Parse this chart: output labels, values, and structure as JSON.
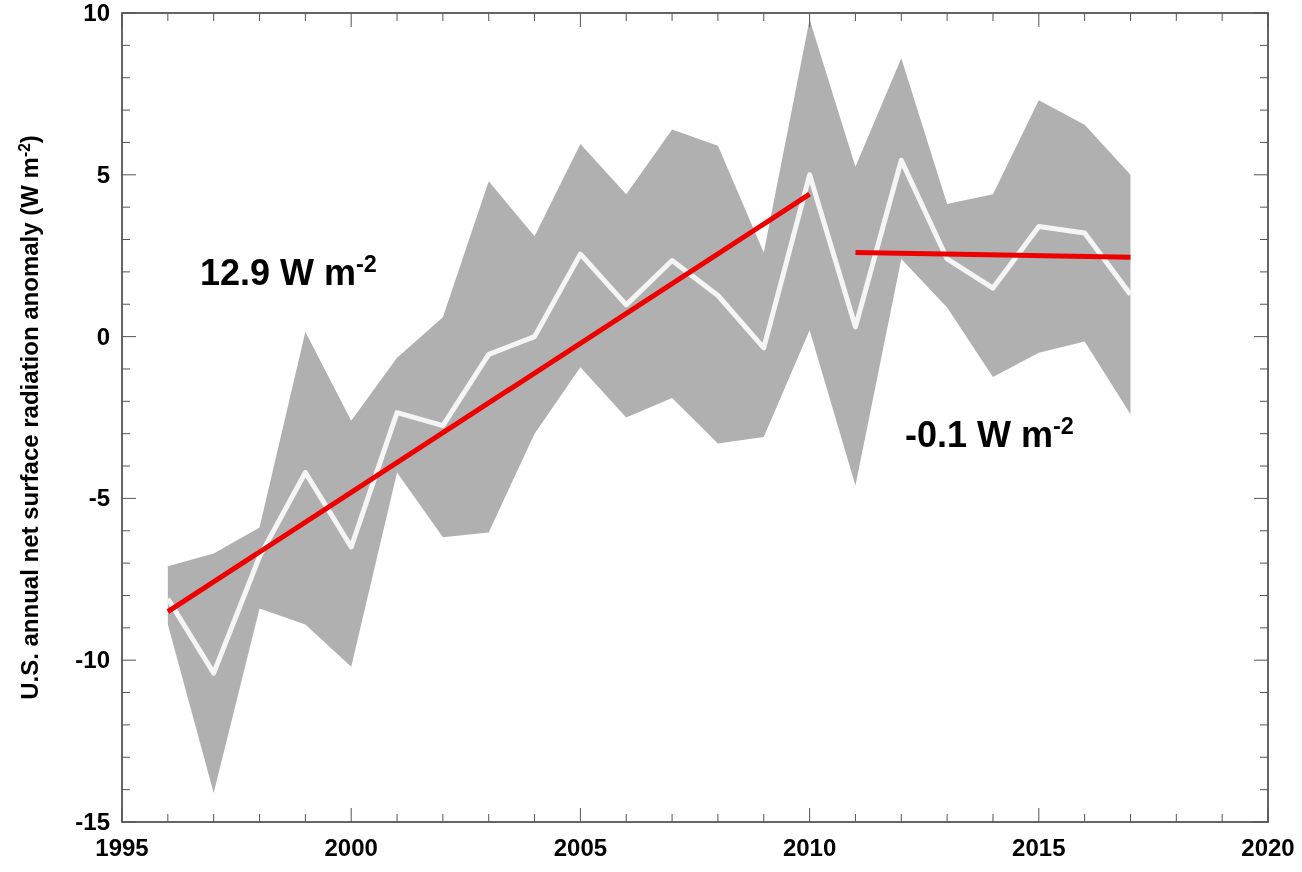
{
  "chart_data": {
    "type": "line",
    "ylabel": "U.S. annual net surface radiation anomaly (W m$^{-2}$)",
    "annotations": [
      "12.9 W m$^{-2}$",
      "-0.1 W m$^{-2}$"
    ],
    "x": [
      1996,
      1997,
      1998,
      1999,
      2000,
      2001,
      2002,
      2003,
      2004,
      2005,
      2006,
      2007,
      2008,
      2009,
      2010,
      2011,
      2012,
      2013,
      2014,
      2015,
      2016,
      2017
    ],
    "series": [
      {
        "color": "#f5f5f5",
        "values": [
          -8.1,
          -10.4,
          -6.8,
          -4.2,
          -6.5,
          -2.35,
          -2.75,
          -0.55,
          0.0,
          2.55,
          0.98,
          2.35,
          1.27,
          -0.35,
          5.0,
          0.3,
          5.45,
          2.4,
          1.5,
          3.4,
          3.2,
          1.3
        ],
        "upper": [
          -7.1,
          -6.7,
          -5.9,
          0.15,
          -2.6,
          -0.65,
          0.6,
          4.8,
          3.1,
          5.95,
          4.4,
          6.4,
          5.9,
          2.6,
          9.8,
          5.25,
          8.6,
          4.1,
          4.4,
          7.3,
          6.55,
          5.0
        ],
        "lower": [
          -8.9,
          -14.1,
          -8.4,
          -8.9,
          -10.2,
          -4.2,
          -6.2,
          -6.05,
          -3.0,
          -0.95,
          -2.5,
          -1.9,
          -3.3,
          -3.1,
          0.2,
          -4.6,
          2.4,
          0.9,
          -1.25,
          -0.5,
          -0.15,
          -2.4
        ]
      },
      {
        "color": "#ee0000",
        "x": [
          1996,
          2010
        ],
        "values": [
          -8.5,
          4.4
        ]
      },
      {
        "color": "#ee0000",
        "x": [
          2011,
          2017
        ],
        "values": [
          2.6,
          2.45
        ]
      }
    ],
    "xlim": [
      1995,
      2020
    ],
    "xticks": [
      1995,
      {
        "value": 1996,
        "label": null
      },
      {
        "value": 1997,
        "label": null
      },
      {
        "value": 1998,
        "label": null
      },
      {
        "value": 1999,
        "label": null
      },
      2000,
      {
        "value": 2001,
        "label": null
      },
      {
        "value": 2002,
        "label": null
      },
      {
        "value": 2003,
        "label": null
      },
      {
        "value": 2004,
        "label": null
      },
      2005,
      {
        "value": 2006,
        "label": null
      },
      {
        "value": 2007,
        "label": null
      },
      {
        "value": 2008,
        "label": null
      },
      {
        "value": 2009,
        "label": null
      },
      2010,
      {
        "value": 2011,
        "label": null
      },
      {
        "value": 2012,
        "label": null
      },
      {
        "value": 2013,
        "label": null
      },
      {
        "value": 2014,
        "label": null
      },
      2015,
      {
        "value": 2016,
        "label": null
      },
      {
        "value": 2017,
        "label": null
      },
      {
        "value": 2018,
        "label": null
      },
      {
        "value": 2019,
        "label": null
      },
      2020
    ],
    "ylim": [
      -15,
      10
    ],
    "yticks": [
      -15,
      {
        "value": -14,
        "label": null
      },
      {
        "value": -13,
        "label": null
      },
      {
        "value": -12,
        "label": null
      },
      {
        "value": -11,
        "label": null
      },
      -10,
      {
        "value": -9,
        "label": null
      },
      {
        "value": -8,
        "label": null
      },
      {
        "value": -7,
        "label": null
      },
      {
        "value": -6,
        "label": null
      },
      -5,
      {
        "value": -4,
        "label": null
      },
      {
        "value": -3,
        "label": null
      },
      {
        "value": -2,
        "label": null
      },
      {
        "value": -1,
        "label": null
      },
      0,
      {
        "value": 1,
        "label": null
      },
      {
        "value": 2,
        "label": null
      },
      {
        "value": 3,
        "label": null
      },
      {
        "value": 4,
        "label": null
      },
      5,
      {
        "value": 6,
        "label": null
      },
      {
        "value": 7,
        "label": null
      },
      {
        "value": 8,
        "label": null
      },
      {
        "value": 9,
        "label": null
      },
      10
    ],
    "grid": false,
    "marker": "none",
    "line_style": "solid"
  }
}
